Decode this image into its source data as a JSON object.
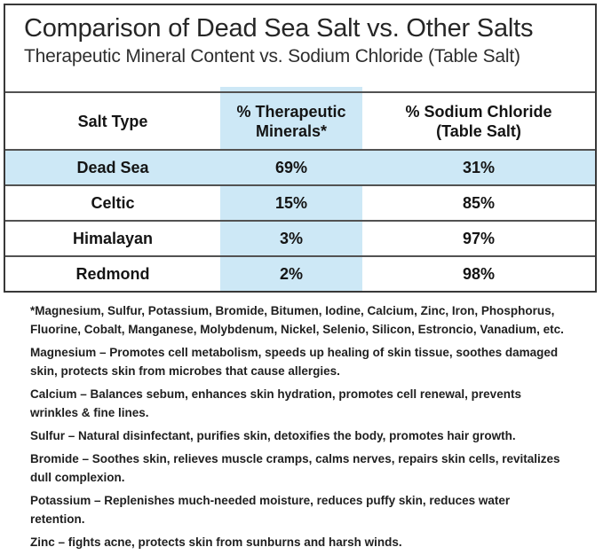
{
  "header": {
    "title": "Comparison of Dead Sea Salt vs. Other Salts",
    "subtitle": "Therapeutic Mineral Content vs. Sodium Chloride (Table Salt)"
  },
  "table": {
    "columns": [
      "Salt Type",
      "% Therapeutic\nMinerals*",
      "%  Sodium Chloride\n(Table Salt)"
    ],
    "rows": [
      {
        "salt": "Dead Sea",
        "therapeutic": "69%",
        "sodium": "31%",
        "highlighted": true
      },
      {
        "salt": "Celtic",
        "therapeutic": "15%",
        "sodium": "85%",
        "highlighted": false
      },
      {
        "salt": "Himalayan",
        "therapeutic": "3%",
        "sodium": "97%",
        "highlighted": false
      },
      {
        "salt": "Redmond",
        "therapeutic": "2%",
        "sodium": "98%",
        "highlighted": false
      }
    ]
  },
  "notes": {
    "footnote": "*Magnesium, Sulfur, Potassium, Bromide, Bitumen, Iodine, Calcium, Zinc, Iron, Phosphorus,\nFluorine, Cobalt, Manganese, Molybdenum, Nickel, Selenio, Silicon, Estroncio, Vanadium, etc.",
    "paragraphs": [
      "Magnesium – Promotes cell metabolism, speeds up healing of skin tissue, soothes damaged\nskin, protects skin from microbes that cause allergies.",
      "Calcium – Balances sebum, enhances skin hydration, promotes cell renewal, prevents\nwrinkles & fine lines.",
      "Sulfur – Natural disinfectant, purifies skin, detoxifies the body, promotes hair growth.",
      "Bromide – Soothes skin, relieves muscle cramps, calms nerves, repairs skin cells, revitalizes\ndull complexion.",
      "Potassium – Replenishes much-needed moisture, reduces puffy skin, reduces water\nretention.",
      "Zinc – fights acne, protects skin from sunburns and harsh winds."
    ]
  },
  "colors": {
    "highlight_blue": "#cde8f6",
    "table_line": "#525252",
    "frame": "#383838",
    "text": "#1d1d1d"
  }
}
